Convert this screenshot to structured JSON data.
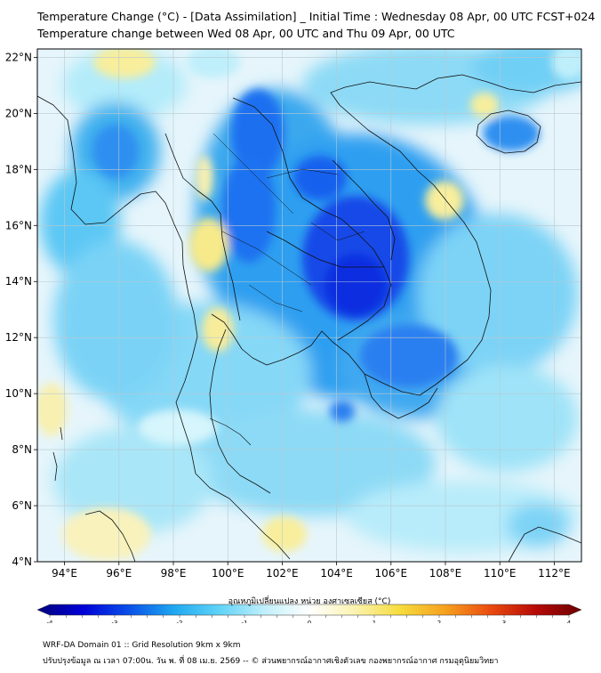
{
  "title": {
    "line1": "Temperature Change (°C) - [Data Assimilation] _ Initial Time : Wednesday 08 Apr, 00 UTC FCST+024",
    "line2": "Temperature change between Wed 08 Apr, 00 UTC and Thu 09 Apr, 00 UTC"
  },
  "map": {
    "lat_labels": [
      "22°N",
      "20°N",
      "18°N",
      "16°N",
      "14°N",
      "12°N",
      "10°N",
      "8°N",
      "6°N",
      "4°N"
    ],
    "lat_values": [
      22,
      20,
      18,
      16,
      14,
      12,
      10,
      8,
      6,
      4
    ],
    "lon_labels": [
      "94°E",
      "96°E",
      "98°E",
      "100°E",
      "102°E",
      "104°E",
      "106°E",
      "108°E",
      "110°E",
      "112°E"
    ],
    "lon_values": [
      94,
      96,
      98,
      100,
      102,
      104,
      106,
      108,
      110,
      112
    ],
    "lon_range": [
      93,
      113
    ],
    "lat_range": [
      4,
      22.3
    ],
    "background_color": "#e6f5fb"
  },
  "colorbar": {
    "label": "อุณหภูมิเปลี่ยนแปลง หน่วย องศาเซลเซียส (°C)",
    "ticks": [
      "-4",
      "-3",
      "-2",
      "-1",
      "0",
      "1",
      "2",
      "3",
      "4"
    ],
    "tick_values": [
      -4,
      -3,
      -2,
      -1,
      0,
      1,
      2,
      3,
      4
    ],
    "range": [
      -4,
      4
    ],
    "colors": [
      "#00007a",
      "#0000d8",
      "#0a4ee8",
      "#1ea7f0",
      "#5fd3f7",
      "#bfeffb",
      "#ffffff",
      "#fbf3b0",
      "#f6dc3c",
      "#f6a01e",
      "#ea4a0e",
      "#b60a08",
      "#6a0000"
    ]
  },
  "footer": {
    "line1": "WRF-DA Domain 01 :: Grid Resolution 9km x 9km",
    "line2": "ปรับปรุงข้อมูล ณ เวลา 07:00น. วัน พ. ที่ 08 เม.ย. 2569 -- © ส่วนพยากรณ์อากาศเชิงตัวเลข กองพยากรณ์อากาศ กรมอุตุนิยมวิทยา"
  }
}
